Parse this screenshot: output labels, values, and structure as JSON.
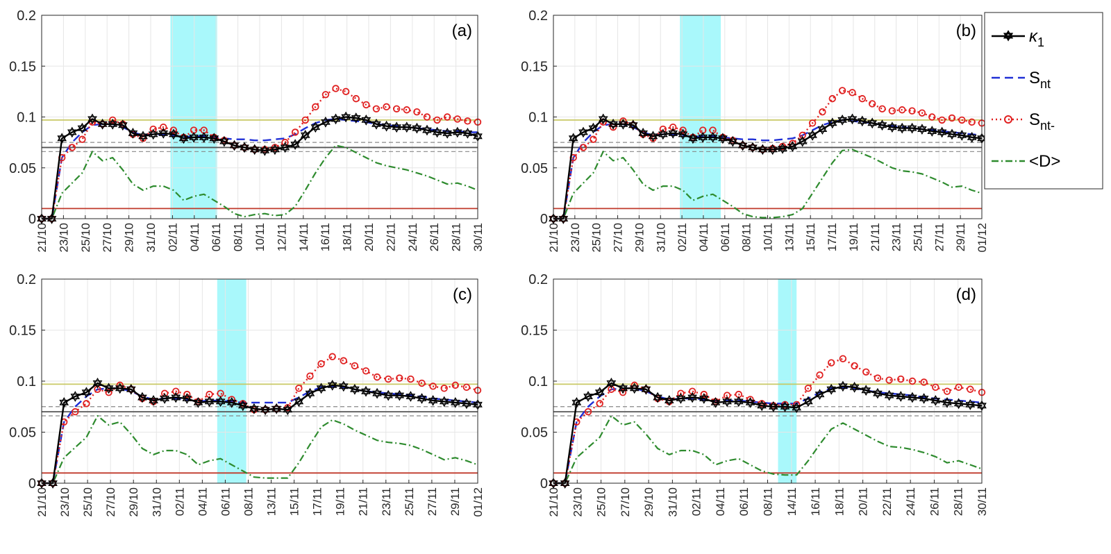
{
  "chart_data": [
    {
      "type": "line",
      "panel_label": "(a)",
      "x_tick_labels": [
        "21/10",
        "23/10",
        "25/10",
        "27/10",
        "29/10",
        "31/10",
        "02/11",
        "04/11",
        "06/11",
        "08/11",
        "10/11",
        "12/11",
        "14/11",
        "16/11",
        "18/11",
        "20/11",
        "22/11",
        "24/11",
        "26/11",
        "28/11",
        "30/11"
      ],
      "y_tick_labels": [
        "0",
        "0.05",
        "0.1",
        "0.15",
        "0.2"
      ],
      "ylim": [
        0,
        0.2
      ],
      "shaded_region": [
        12.7,
        17.3
      ],
      "hlines": [
        {
          "name": "yellow-line",
          "y": 0.097,
          "color": "#c8c864"
        },
        {
          "name": "upper-dashed-line",
          "y": 0.075,
          "color": "#888888"
        },
        {
          "name": "grey-line",
          "y": 0.07,
          "color": "#555555"
        },
        {
          "name": "lower-dashed-line",
          "y": 0.066,
          "color": "#888888"
        },
        {
          "name": "red-line",
          "y": 0.01,
          "color": "#c0392b"
        }
      ],
      "series": [
        {
          "name": "κ1",
          "values": [
            0,
            0,
            0.079,
            0.085,
            0.089,
            0.098,
            0.093,
            0.093,
            0.092,
            0.084,
            0.081,
            0.083,
            0.084,
            0.083,
            0.079,
            0.08,
            0.08,
            0.079,
            0.076,
            0.072,
            0.07,
            0.068,
            0.067,
            0.068,
            0.07,
            0.073,
            0.082,
            0.09,
            0.095,
            0.098,
            0.1,
            0.099,
            0.097,
            0.093,
            0.091,
            0.09,
            0.09,
            0.089,
            0.087,
            0.085,
            0.084,
            0.085,
            0.084,
            0.081
          ]
        },
        {
          "name": "S_nt",
          "values": [
            0,
            0,
            0.06,
            0.075,
            0.085,
            0.092,
            0.093,
            0.093,
            0.09,
            0.085,
            0.082,
            0.083,
            0.083,
            0.082,
            0.08,
            0.081,
            0.081,
            0.08,
            0.079,
            0.078,
            0.078,
            0.077,
            0.077,
            0.078,
            0.079,
            0.083,
            0.089,
            0.094,
            0.097,
            0.098,
            0.097,
            0.096,
            0.095,
            0.093,
            0.092,
            0.091,
            0.09,
            0.089,
            0.088,
            0.087,
            0.086,
            0.086,
            0.085,
            0.085
          ]
        },
        {
          "name": "S_nt-",
          "values": [
            0,
            0,
            0.06,
            0.07,
            0.078,
            0.095,
            0.093,
            0.097,
            0.093,
            0.083,
            0.079,
            0.088,
            0.09,
            0.087,
            0.08,
            0.087,
            0.087,
            0.08,
            0.077,
            0.072,
            0.07,
            0.068,
            0.068,
            0.07,
            0.075,
            0.085,
            0.097,
            0.11,
            0.122,
            0.128,
            0.125,
            0.118,
            0.112,
            0.108,
            0.11,
            0.108,
            0.107,
            0.105,
            0.1,
            0.097,
            0.1,
            0.098,
            0.096,
            0.095
          ]
        },
        {
          "name": "<D>",
          "values": [
            0,
            0,
            0.025,
            0.035,
            0.045,
            0.066,
            0.057,
            0.06,
            0.048,
            0.034,
            0.028,
            0.032,
            0.032,
            0.028,
            0.018,
            0.022,
            0.024,
            0.018,
            0.012,
            0.005,
            0.002,
            0.004,
            0.005,
            0.003,
            0.004,
            0.012,
            0.028,
            0.045,
            0.06,
            0.072,
            0.07,
            0.065,
            0.06,
            0.055,
            0.052,
            0.05,
            0.048,
            0.045,
            0.042,
            0.038,
            0.034,
            0.035,
            0.032,
            0.028
          ]
        }
      ]
    },
    {
      "type": "line",
      "panel_label": "(b)",
      "x_tick_labels": [
        "21/10",
        "23/10",
        "25/10",
        "27/10",
        "29/10",
        "31/10",
        "02/11",
        "04/11",
        "06/11",
        "08/11",
        "10/11",
        "13/11",
        "15/11",
        "17/11",
        "19/11",
        "21/11",
        "23/11",
        "25/11",
        "27/11",
        "29/11",
        "01/12"
      ],
      "y_tick_labels": [
        "0",
        "0.05",
        "0.1",
        "0.15",
        "0.2"
      ],
      "ylim": [
        0,
        0.2
      ],
      "shaded_region": [
        12.7,
        16.8
      ],
      "hlines": [
        {
          "name": "yellow-line",
          "y": 0.097,
          "color": "#c8c864"
        },
        {
          "name": "upper-dashed-line",
          "y": 0.075,
          "color": "#888888"
        },
        {
          "name": "grey-line",
          "y": 0.07,
          "color": "#555555"
        },
        {
          "name": "lower-dashed-line",
          "y": 0.066,
          "color": "#888888"
        },
        {
          "name": "red-line",
          "y": 0.01,
          "color": "#c0392b"
        }
      ],
      "series": [
        {
          "name": "κ1",
          "values": [
            0,
            0,
            0.079,
            0.085,
            0.089,
            0.098,
            0.093,
            0.093,
            0.092,
            0.084,
            0.081,
            0.083,
            0.084,
            0.083,
            0.079,
            0.08,
            0.08,
            0.079,
            0.076,
            0.072,
            0.07,
            0.068,
            0.068,
            0.069,
            0.071,
            0.076,
            0.082,
            0.088,
            0.094,
            0.097,
            0.098,
            0.096,
            0.094,
            0.092,
            0.09,
            0.089,
            0.089,
            0.088,
            0.086,
            0.085,
            0.083,
            0.082,
            0.08,
            0.079
          ]
        },
        {
          "name": "S_nt",
          "values": [
            0,
            0,
            0.06,
            0.075,
            0.085,
            0.092,
            0.093,
            0.093,
            0.09,
            0.085,
            0.082,
            0.083,
            0.083,
            0.082,
            0.08,
            0.081,
            0.081,
            0.08,
            0.079,
            0.078,
            0.078,
            0.077,
            0.077,
            0.078,
            0.079,
            0.082,
            0.087,
            0.092,
            0.095,
            0.097,
            0.096,
            0.095,
            0.094,
            0.092,
            0.091,
            0.09,
            0.089,
            0.088,
            0.087,
            0.086,
            0.085,
            0.084,
            0.083,
            0.082
          ]
        },
        {
          "name": "S_nt-",
          "values": [
            0,
            0,
            0.06,
            0.07,
            0.078,
            0.095,
            0.09,
            0.096,
            0.092,
            0.083,
            0.079,
            0.088,
            0.09,
            0.087,
            0.08,
            0.087,
            0.087,
            0.08,
            0.077,
            0.072,
            0.07,
            0.068,
            0.069,
            0.071,
            0.074,
            0.082,
            0.094,
            0.105,
            0.118,
            0.126,
            0.124,
            0.118,
            0.113,
            0.108,
            0.106,
            0.107,
            0.106,
            0.104,
            0.1,
            0.097,
            0.099,
            0.097,
            0.095,
            0.094
          ]
        },
        {
          "name": "<D>",
          "values": [
            0,
            0,
            0.025,
            0.035,
            0.045,
            0.066,
            0.057,
            0.06,
            0.048,
            0.034,
            0.028,
            0.032,
            0.032,
            0.028,
            0.018,
            0.022,
            0.024,
            0.018,
            0.012,
            0.005,
            0.002,
            0.001,
            0.001,
            0.002,
            0.004,
            0.01,
            0.025,
            0.04,
            0.055,
            0.067,
            0.068,
            0.064,
            0.06,
            0.055,
            0.05,
            0.047,
            0.046,
            0.044,
            0.04,
            0.036,
            0.031,
            0.032,
            0.028,
            0.025
          ]
        }
      ]
    },
    {
      "type": "line",
      "panel_label": "(c)",
      "x_tick_labels": [
        "21/10",
        "23/10",
        "25/10",
        "27/10",
        "29/10",
        "31/10",
        "02/11",
        "04/11",
        "06/11",
        "08/11",
        "13/11",
        "15/11",
        "17/11",
        "19/11",
        "21/11",
        "23/11",
        "25/11",
        "27/11",
        "29/11",
        "01/12"
      ],
      "y_tick_labels": [
        "0",
        "0.05",
        "0.1",
        "0.15",
        "0.2"
      ],
      "ylim": [
        0,
        0.2
      ],
      "shaded_region": [
        15.7,
        18.3
      ],
      "hlines": [
        {
          "name": "yellow-line",
          "y": 0.097,
          "color": "#c8c864"
        },
        {
          "name": "upper-dashed-line",
          "y": 0.075,
          "color": "#888888"
        },
        {
          "name": "grey-line",
          "y": 0.07,
          "color": "#555555"
        },
        {
          "name": "lower-dashed-line",
          "y": 0.066,
          "color": "#888888"
        },
        {
          "name": "red-line",
          "y": 0.01,
          "color": "#c0392b"
        }
      ],
      "series": [
        {
          "name": "κ1",
          "values": [
            0,
            0,
            0.079,
            0.085,
            0.089,
            0.098,
            0.093,
            0.093,
            0.092,
            0.084,
            0.081,
            0.083,
            0.084,
            0.083,
            0.079,
            0.08,
            0.08,
            0.079,
            0.076,
            0.073,
            0.072,
            0.073,
            0.072,
            0.08,
            0.088,
            0.093,
            0.096,
            0.095,
            0.092,
            0.09,
            0.088,
            0.086,
            0.086,
            0.085,
            0.083,
            0.081,
            0.08,
            0.079,
            0.078,
            0.077
          ]
        },
        {
          "name": "S_nt",
          "values": [
            0,
            0,
            0.06,
            0.075,
            0.085,
            0.092,
            0.093,
            0.093,
            0.09,
            0.085,
            0.082,
            0.083,
            0.083,
            0.082,
            0.08,
            0.081,
            0.081,
            0.08,
            0.079,
            0.079,
            0.079,
            0.079,
            0.079,
            0.084,
            0.09,
            0.094,
            0.095,
            0.094,
            0.092,
            0.09,
            0.089,
            0.088,
            0.087,
            0.086,
            0.085,
            0.083,
            0.082,
            0.081,
            0.08,
            0.079
          ]
        },
        {
          "name": "S_nt-",
          "values": [
            0,
            0,
            0.06,
            0.07,
            0.078,
            0.092,
            0.089,
            0.096,
            0.092,
            0.083,
            0.08,
            0.088,
            0.09,
            0.087,
            0.08,
            0.087,
            0.088,
            0.082,
            0.078,
            0.072,
            0.072,
            0.073,
            0.074,
            0.093,
            0.105,
            0.117,
            0.124,
            0.12,
            0.115,
            0.11,
            0.104,
            0.102,
            0.103,
            0.102,
            0.098,
            0.095,
            0.093,
            0.096,
            0.094,
            0.091
          ]
        },
        {
          "name": "<D>",
          "values": [
            0,
            0,
            0.025,
            0.035,
            0.045,
            0.066,
            0.057,
            0.06,
            0.048,
            0.034,
            0.028,
            0.032,
            0.032,
            0.028,
            0.018,
            0.022,
            0.024,
            0.018,
            0.012,
            0.006,
            0.005,
            0.005,
            0.005,
            0.02,
            0.038,
            0.055,
            0.062,
            0.058,
            0.052,
            0.047,
            0.042,
            0.04,
            0.039,
            0.037,
            0.033,
            0.028,
            0.023,
            0.025,
            0.022,
            0.018
          ]
        }
      ]
    },
    {
      "type": "line",
      "panel_label": "(d)",
      "x_tick_labels": [
        "21/10",
        "23/10",
        "25/10",
        "27/10",
        "29/10",
        "31/10",
        "02/11",
        "04/11",
        "06/11",
        "08/11",
        "14/11",
        "16/11",
        "18/11",
        "20/11",
        "22/11",
        "24/11",
        "26/11",
        "28/11",
        "30/11"
      ],
      "y_tick_labels": [
        "0",
        "0.05",
        "0.1",
        "0.15",
        "0.2"
      ],
      "ylim": [
        0,
        0.2
      ],
      "shaded_region": [
        19.4,
        21.0
      ],
      "hlines": [
        {
          "name": "yellow-line",
          "y": 0.097,
          "color": "#c8c864"
        },
        {
          "name": "upper-dashed-line",
          "y": 0.075,
          "color": "#888888"
        },
        {
          "name": "grey-line",
          "y": 0.07,
          "color": "#555555"
        },
        {
          "name": "lower-dashed-line",
          "y": 0.066,
          "color": "#888888"
        },
        {
          "name": "red-line",
          "y": 0.01,
          "color": "#c0392b"
        }
      ],
      "series": [
        {
          "name": "κ1",
          "values": [
            0,
            0,
            0.079,
            0.085,
            0.089,
            0.098,
            0.093,
            0.093,
            0.092,
            0.084,
            0.081,
            0.083,
            0.084,
            0.083,
            0.079,
            0.08,
            0.08,
            0.079,
            0.076,
            0.075,
            0.075,
            0.074,
            0.08,
            0.087,
            0.092,
            0.095,
            0.094,
            0.091,
            0.088,
            0.086,
            0.085,
            0.084,
            0.083,
            0.081,
            0.079,
            0.078,
            0.077,
            0.076
          ]
        },
        {
          "name": "S_nt",
          "values": [
            0,
            0,
            0.06,
            0.075,
            0.085,
            0.092,
            0.093,
            0.093,
            0.09,
            0.085,
            0.082,
            0.083,
            0.083,
            0.082,
            0.08,
            0.081,
            0.081,
            0.08,
            0.079,
            0.078,
            0.078,
            0.078,
            0.083,
            0.089,
            0.093,
            0.094,
            0.093,
            0.091,
            0.089,
            0.088,
            0.087,
            0.086,
            0.084,
            0.083,
            0.082,
            0.081,
            0.08,
            0.079
          ]
        },
        {
          "name": "S_nt-",
          "values": [
            0,
            0,
            0.06,
            0.07,
            0.078,
            0.092,
            0.089,
            0.096,
            0.092,
            0.083,
            0.08,
            0.088,
            0.09,
            0.087,
            0.08,
            0.086,
            0.087,
            0.082,
            0.078,
            0.076,
            0.077,
            0.077,
            0.093,
            0.106,
            0.118,
            0.122,
            0.115,
            0.109,
            0.103,
            0.101,
            0.102,
            0.1,
            0.099,
            0.094,
            0.09,
            0.094,
            0.092,
            0.089
          ]
        },
        {
          "name": "<D>",
          "values": [
            0,
            0,
            0.025,
            0.035,
            0.045,
            0.066,
            0.057,
            0.06,
            0.048,
            0.034,
            0.028,
            0.032,
            0.032,
            0.028,
            0.018,
            0.022,
            0.024,
            0.018,
            0.012,
            0.009,
            0.008,
            0.008,
            0.022,
            0.038,
            0.053,
            0.059,
            0.053,
            0.047,
            0.041,
            0.036,
            0.035,
            0.033,
            0.03,
            0.026,
            0.02,
            0.022,
            0.018,
            0.014
          ]
        }
      ]
    }
  ],
  "legend": {
    "items": [
      {
        "key": "k1",
        "base": "κ",
        "sub": "1",
        "color": "#000000"
      },
      {
        "key": "snt",
        "base": "S",
        "sub": "nt",
        "color": "#1f2fd6"
      },
      {
        "key": "sntm",
        "base": "S",
        "sub": "nt-",
        "color": "#e02020"
      },
      {
        "key": "d",
        "base": "<D>",
        "sub": "",
        "color": "#2e8b2e"
      }
    ]
  },
  "colors": {
    "shade": "#a9f8fb",
    "grid": "#e6e6e6",
    "axis": "#262626",
    "k1": "#000000",
    "snt": "#1f2fd6",
    "sntm": "#e02020",
    "d": "#2e8b2e"
  }
}
